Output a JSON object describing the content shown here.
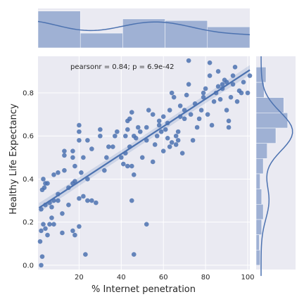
{
  "chart_data": {
    "type": "scatter",
    "xlabel": "% Internet penetration",
    "ylabel": "Healthy Life Expectancy",
    "annotation": "pearsonr = 0.84; p = 6.9e-42",
    "xlim": [
      0.5,
      101
    ],
    "ylim": [
      -0.02,
      0.97
    ],
    "x_ticks": [
      20,
      40,
      60,
      80,
      100
    ],
    "y_ticks": [
      0.0,
      0.2,
      0.4,
      0.6,
      0.8
    ],
    "y_tick_labels": [
      "0.0",
      "0.2",
      "0.4",
      "0.6",
      "0.8"
    ],
    "grid": true,
    "colors": {
      "point": "#4c72b0",
      "line": "#4c72b0",
      "panel": "#eaeaf2",
      "grid": "#ffffff",
      "hist": "#9fb1d4"
    },
    "regression": {
      "slope": 0.0064,
      "intercept": 0.26
    },
    "points": [
      [
        2,
        0.0
      ],
      [
        2.5,
        0.04
      ],
      [
        1.5,
        0.11
      ],
      [
        2,
        0.16
      ],
      [
        3,
        0.19
      ],
      [
        4,
        0.17
      ],
      [
        5,
        0.14
      ],
      [
        6,
        0.19
      ],
      [
        7,
        0.22
      ],
      [
        8,
        0.19
      ],
      [
        2,
        0.26
      ],
      [
        4,
        0.28
      ],
      [
        6,
        0.29
      ],
      [
        7,
        0.27
      ],
      [
        8,
        0.3
      ],
      [
        10,
        0.33
      ],
      [
        12,
        0.24
      ],
      [
        12,
        0.15
      ],
      [
        17,
        0.16
      ],
      [
        18,
        0.14
      ],
      [
        20,
        0.18
      ],
      [
        23,
        0.05
      ],
      [
        2.5,
        0.35
      ],
      [
        3.5,
        0.36
      ],
      [
        4,
        0.38
      ],
      [
        5,
        0.38
      ],
      [
        3,
        0.4
      ],
      [
        10,
        0.43
      ],
      [
        13,
        0.44
      ],
      [
        15,
        0.36
      ],
      [
        17,
        0.38
      ],
      [
        18,
        0.39
      ],
      [
        20,
        0.31
      ],
      [
        22,
        0.32
      ],
      [
        24,
        0.3
      ],
      [
        26,
        0.3
      ],
      [
        28,
        0.29
      ],
      [
        13,
        0.51
      ],
      [
        13,
        0.53
      ],
      [
        17,
        0.5
      ],
      [
        17,
        0.53
      ],
      [
        18,
        0.46
      ],
      [
        21,
        0.43
      ],
      [
        22,
        0.5
      ],
      [
        24,
        0.4
      ],
      [
        20,
        0.58
      ],
      [
        20,
        0.62
      ],
      [
        20,
        0.65
      ],
      [
        24,
        0.58
      ],
      [
        26,
        0.54
      ],
      [
        30,
        0.6
      ],
      [
        30,
        0.63
      ],
      [
        33,
        0.5
      ],
      [
        34,
        0.55
      ],
      [
        36,
        0.55
      ],
      [
        37,
        0.6
      ],
      [
        40,
        0.5
      ],
      [
        41,
        0.47
      ],
      [
        42,
        0.6
      ],
      [
        43,
        0.63
      ],
      [
        43,
        0.67
      ],
      [
        44,
        0.68
      ],
      [
        44,
        0.55
      ],
      [
        45,
        0.71
      ],
      [
        46,
        0.6
      ],
      [
        47,
        0.59
      ],
      [
        48,
        0.64
      ],
      [
        49,
        0.62
      ],
      [
        43,
        0.46
      ],
      [
        45,
        0.46
      ],
      [
        46,
        0.42
      ],
      [
        45,
        0.3
      ],
      [
        46,
        0.05
      ],
      [
        52,
        0.19
      ],
      [
        50,
        0.5
      ],
      [
        52,
        0.58
      ],
      [
        52,
        0.64
      ],
      [
        53,
        0.72
      ],
      [
        55,
        0.48
      ],
      [
        56,
        0.56
      ],
      [
        57,
        0.6
      ],
      [
        58,
        0.65
      ],
      [
        58,
        0.67
      ],
      [
        59,
        0.62
      ],
      [
        60,
        0.53
      ],
      [
        61,
        0.63
      ],
      [
        62,
        0.59
      ],
      [
        62,
        0.66
      ],
      [
        63,
        0.55
      ],
      [
        63,
        0.72
      ],
      [
        64,
        0.57
      ],
      [
        64,
        0.8
      ],
      [
        65,
        0.78
      ],
      [
        66,
        0.56
      ],
      [
        67,
        0.58
      ],
      [
        67,
        0.62
      ],
      [
        68,
        0.69
      ],
      [
        69,
        0.52
      ],
      [
        70,
        0.68
      ],
      [
        70,
        0.72
      ],
      [
        71,
        0.79
      ],
      [
        72,
        0.84
      ],
      [
        72,
        0.95
      ],
      [
        73,
        0.7
      ],
      [
        74,
        0.58
      ],
      [
        75,
        0.75
      ],
      [
        76,
        0.64
      ],
      [
        77,
        0.68
      ],
      [
        78,
        0.72
      ],
      [
        79,
        0.8
      ],
      [
        80,
        0.82
      ],
      [
        81,
        0.7
      ],
      [
        82,
        0.88
      ],
      [
        82,
        0.94
      ],
      [
        83,
        0.65
      ],
      [
        84,
        0.76
      ],
      [
        85,
        0.8
      ],
      [
        86,
        0.83
      ],
      [
        86,
        0.9
      ],
      [
        87,
        0.77
      ],
      [
        88,
        0.82
      ],
      [
        89,
        0.86
      ],
      [
        90,
        0.72
      ],
      [
        91,
        0.67
      ],
      [
        91,
        0.64
      ],
      [
        92,
        0.78
      ],
      [
        93,
        0.84
      ],
      [
        93,
        0.88
      ],
      [
        94,
        0.92
      ],
      [
        95,
        0.76
      ],
      [
        96,
        0.81
      ],
      [
        97,
        0.8
      ],
      [
        98,
        0.85
      ],
      [
        100,
        0.8
      ],
      [
        101,
        0.88
      ],
      [
        88,
        0.84
      ],
      [
        90,
        0.85
      ],
      [
        79,
        0.78
      ],
      [
        66,
        0.6
      ],
      [
        42,
        0.52
      ],
      [
        38,
        0.62
      ],
      [
        32,
        0.44
      ],
      [
        10,
        0.3
      ],
      [
        15,
        0.28
      ],
      [
        8,
        0.42
      ],
      [
        55,
        0.7
      ],
      [
        60,
        0.69
      ],
      [
        68,
        0.74
      ]
    ],
    "x_marginal_hist": [
      0.7,
      0.28,
      0.55,
      0.52,
      0.4
    ],
    "y_marginal_hist": [
      0.1,
      0.08,
      0.14,
      0.18,
      0.14,
      0.1,
      0.18,
      0.28,
      0.5,
      0.8,
      0.7,
      0.2,
      0.25
    ]
  }
}
